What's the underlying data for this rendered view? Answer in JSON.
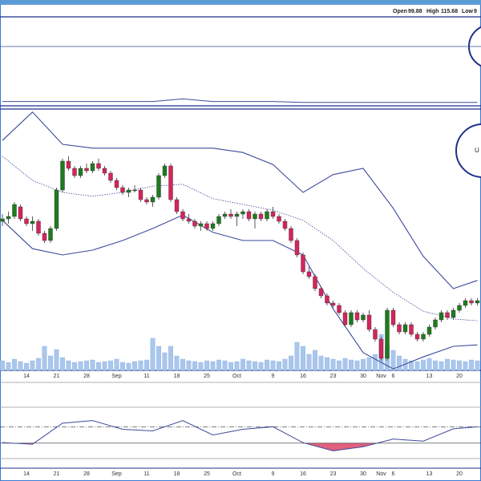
{
  "chart_data": {
    "type": "candlestick",
    "header": [
      {
        "label": "Open",
        "value": "99.88"
      },
      {
        "label": "High",
        "value": "115.68"
      },
      {
        "label": "Low",
        "value": "9"
      }
    ],
    "badges": [
      "U"
    ],
    "categories": [
      null,
      null,
      null,
      null,
      "14",
      null,
      null,
      null,
      null,
      "21",
      null,
      null,
      null,
      null,
      "28",
      null,
      null,
      null,
      null,
      "Sep",
      null,
      null,
      null,
      null,
      "11",
      null,
      null,
      null,
      null,
      "18",
      null,
      null,
      null,
      null,
      "25",
      null,
      null,
      null,
      null,
      "Oct",
      null,
      null,
      null,
      null,
      null,
      "9",
      null,
      null,
      null,
      null,
      "16",
      null,
      null,
      null,
      null,
      "23",
      null,
      null,
      null,
      null,
      "30",
      null,
      null,
      "Nov",
      null,
      "6",
      null,
      null,
      null,
      null,
      null,
      "13",
      null,
      null,
      null,
      null,
      "20",
      null,
      null,
      null
    ],
    "open": [
      117,
      117.5,
      118,
      120,
      117.5,
      116.5,
      117,
      114.5,
      113,
      115.5,
      123.5,
      129.5,
      128,
      126.5,
      128,
      127.5,
      129,
      128,
      127,
      125.5,
      124,
      123,
      123.5,
      123.5,
      121.5,
      121,
      122,
      126.5,
      128.5,
      121.5,
      119,
      117.5,
      117,
      116,
      116.5,
      115.5,
      116.5,
      118,
      118.5,
      118,
      118.5,
      119,
      117.5,
      118.5,
      117.5,
      119,
      118,
      117,
      115.5,
      113,
      110,
      106.5,
      105.5,
      103,
      101.5,
      100,
      99.5,
      98,
      95.5,
      98,
      96.5,
      97.5,
      94.5,
      92.5,
      88.5,
      98.5,
      95.5,
      94,
      95.5,
      93.5,
      92.5,
      93.5,
      95,
      96.5,
      98,
      97,
      98.5,
      99.5,
      100.5,
      100
    ],
    "high": [
      118.5,
      119,
      121,
      120.5,
      118,
      118,
      117.5,
      115,
      116,
      124,
      130,
      130.5,
      128.5,
      128.5,
      129,
      129.5,
      130,
      128.5,
      127.5,
      126,
      124.5,
      124,
      124.5,
      124,
      122,
      122.5,
      127,
      129,
      129,
      122,
      119.5,
      118.5,
      117.5,
      117,
      117,
      117,
      118.5,
      119,
      119.5,
      119,
      119.5,
      119.5,
      119,
      119,
      119.5,
      120,
      118.5,
      117.5,
      116,
      113.5,
      110.5,
      107.5,
      106,
      103.5,
      102,
      100.5,
      100,
      98.5,
      98.5,
      98.5,
      98,
      98.5,
      95,
      93,
      99,
      99,
      96,
      96,
      96,
      94,
      94,
      95.5,
      97,
      98.5,
      98.5,
      99,
      100,
      101,
      101,
      101
    ],
    "low": [
      116,
      116.5,
      117.5,
      117,
      116,
      115,
      114,
      112.5,
      112.5,
      115,
      123,
      127.5,
      126,
      126,
      127,
      127,
      127.5,
      126.5,
      125,
      123.5,
      122.5,
      122,
      123,
      121,
      120.5,
      120,
      121.5,
      126,
      121,
      118.5,
      117,
      116.5,
      115.5,
      115,
      115,
      115,
      116,
      117.5,
      117.5,
      116,
      117.5,
      117,
      115.5,
      117,
      117,
      117.5,
      116.5,
      115,
      112.5,
      109.5,
      106,
      105,
      102.5,
      101,
      99.5,
      99,
      97.5,
      95,
      95,
      96,
      96,
      94,
      92,
      88,
      88,
      95,
      93.5,
      93.5,
      93,
      92,
      92,
      93,
      94.5,
      96,
      96.5,
      96.5,
      98,
      99,
      99.5,
      99.5
    ],
    "close": [
      117.5,
      118,
      120.5,
      117.5,
      116.5,
      117,
      114.5,
      113,
      115.5,
      123.5,
      129.5,
      128,
      126.5,
      128,
      127.5,
      129,
      128,
      127,
      125.5,
      124,
      123,
      123.5,
      123.5,
      121.5,
      121,
      122,
      126.5,
      128.5,
      121.5,
      119,
      117.5,
      117,
      116,
      116.5,
      115.5,
      116.5,
      118,
      118.5,
      118,
      118.5,
      119,
      117.5,
      118.5,
      117.5,
      119,
      118,
      117,
      115.5,
      113,
      110,
      106.5,
      105.5,
      103,
      101.5,
      100,
      99.5,
      98,
      95.5,
      98,
      96.5,
      97.5,
      94.5,
      92.5,
      88.5,
      98.5,
      95.5,
      94,
      95.5,
      93.5,
      92.5,
      93.5,
      95,
      96.5,
      98,
      97,
      98.5,
      99.5,
      100.5,
      100,
      100.5
    ],
    "up_color": "#1e7b1e",
    "down_color": "#d6245a",
    "ylim": [
      86,
      140
    ],
    "bands": [
      {
        "color": "#3d4a9c",
        "style": "solid",
        "x": [
          0,
          5,
          10,
          15,
          20,
          25,
          30,
          35,
          40,
          45,
          50,
          55,
          60,
          65,
          70,
          75,
          79
        ],
        "values": [
          133.8,
          139.7,
          133,
          132.2,
          132.2,
          132.2,
          132.2,
          132.2,
          131.3,
          128.8,
          123,
          126.7,
          128,
          119.7,
          109.7,
          103,
          104.7
        ]
      },
      {
        "color": "#3d4a9c",
        "style": "dotted",
        "x": [
          0,
          5,
          10,
          15,
          20,
          25,
          30,
          35,
          40,
          45,
          50,
          55,
          60,
          65,
          70,
          75,
          79
        ],
        "values": [
          130.5,
          125.5,
          123,
          122.2,
          123,
          124.3,
          124.7,
          121.7,
          120.5,
          119.3,
          117.2,
          113,
          107.2,
          102.2,
          98.3,
          96.7,
          96.3
        ]
      },
      {
        "color": "#3d4a9c",
        "style": "solid",
        "x": [
          0,
          5,
          10,
          15,
          20,
          25,
          30,
          35,
          40,
          45,
          50,
          55,
          60,
          65,
          70,
          75,
          79
        ],
        "values": [
          117.2,
          111.3,
          110,
          111,
          113,
          115.5,
          118.3,
          114.7,
          113,
          113,
          110,
          98.8,
          89.7,
          86.3,
          88.8,
          91,
          91.3
        ]
      }
    ],
    "volume": {
      "color": "#a9c6ec",
      "ylim": [
        0,
        50
      ],
      "values": [
        12,
        10,
        14,
        11,
        9,
        12,
        15,
        30,
        18,
        26,
        16,
        12,
        10,
        11,
        12,
        13,
        10,
        11,
        12,
        14,
        10,
        9,
        11,
        12,
        13,
        40,
        30,
        22,
        30,
        18,
        14,
        12,
        11,
        10,
        12,
        11,
        13,
        12,
        10,
        11,
        14,
        12,
        11,
        10,
        13,
        12,
        11,
        14,
        18,
        35,
        30,
        20,
        25,
        18,
        16,
        14,
        12,
        15,
        13,
        12,
        14,
        16,
        20,
        45,
        30,
        25,
        18,
        14,
        12,
        11,
        13,
        15,
        12,
        11,
        14,
        13,
        12,
        11,
        13,
        12
      ]
    },
    "oscillator": {
      "color": "#3d4a9c",
      "fill": "#e0607e",
      "ylim": [
        0,
        100
      ],
      "levels": [
        30,
        62
      ],
      "x": [
        0,
        5,
        10,
        15,
        20,
        25,
        30,
        35,
        40,
        45,
        50,
        55,
        60,
        65,
        70,
        75,
        79
      ],
      "values": [
        31,
        28,
        69,
        74,
        57,
        54,
        74,
        46,
        57,
        62,
        31,
        15,
        23,
        38,
        34,
        58,
        62
      ]
    },
    "top_indicator": {
      "color": "#3d4a9c",
      "ylim": [
        0,
        100
      ],
      "levels": [
        67
      ],
      "x": [
        0,
        5,
        10,
        15,
        20,
        25,
        30,
        35,
        40,
        45,
        50,
        55,
        60,
        65,
        70,
        75,
        79
      ],
      "values": [
        4,
        4,
        4,
        4,
        4,
        4,
        7,
        4,
        4,
        4,
        3,
        3,
        3,
        3,
        3,
        3,
        3
      ]
    }
  }
}
